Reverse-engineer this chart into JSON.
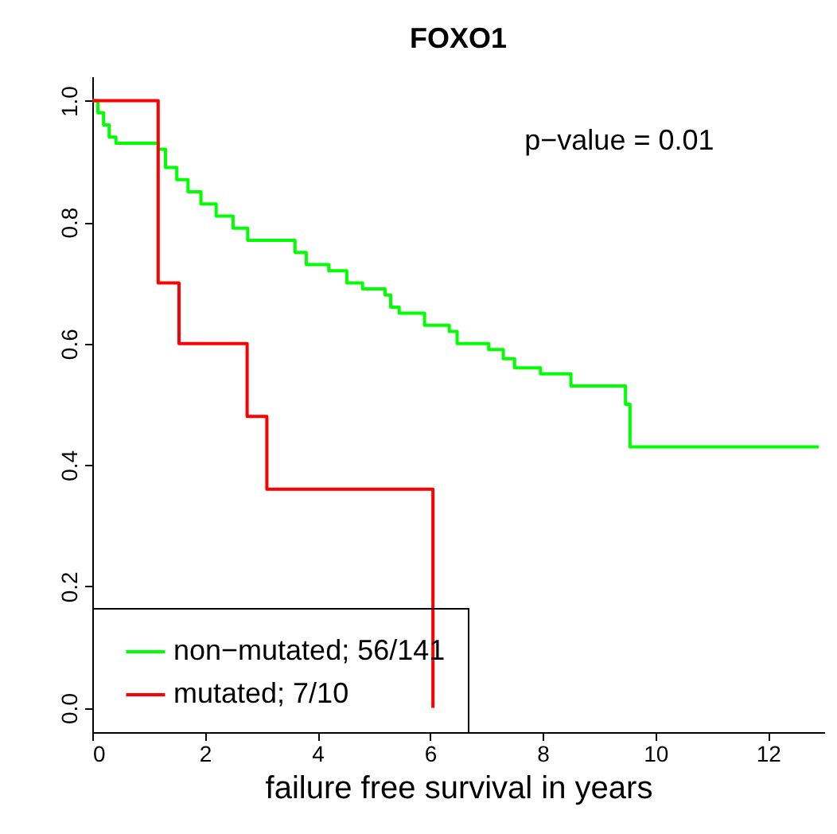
{
  "chart_data": {
    "type": "step",
    "title": "FOXO1",
    "xlabel": "failure free survival in years",
    "annotations": [
      "p−value = 0.01"
    ],
    "xlim": [
      0,
      13
    ],
    "ylim": [
      -0.04,
      1.04
    ],
    "xticks": [
      0,
      2,
      4,
      6,
      8,
      10,
      12
    ],
    "yticks": [
      {
        "value": 0,
        "label": "0.0"
      },
      {
        "value": 0.2,
        "label": "0.2"
      },
      {
        "value": 0.4,
        "label": "0.4"
      },
      {
        "value": 0.6,
        "label": "0.6"
      },
      {
        "value": 0.8,
        "label": "0.8"
      },
      {
        "value": 1,
        "label": "1.0"
      }
    ],
    "grid": false,
    "legend": "bottom left",
    "line_style": "solid",
    "series": [
      {
        "name": "non−mutated; 56/141",
        "color": "#00ff00",
        "x": [
          0,
          0.1,
          0.2,
          0.3,
          0.42,
          1.17,
          1.3,
          1.5,
          1.7,
          1.93,
          2.2,
          2.5,
          2.76,
          3.6,
          3.8,
          4.2,
          4.52,
          4.8,
          5.2,
          5.3,
          5.45,
          5.9,
          6.34,
          6.48,
          7.04,
          7.3,
          7.5,
          7.96,
          8.5,
          9.47,
          9.55,
          12.9
        ],
        "values": [
          1,
          0.98,
          0.96,
          0.94,
          0.93,
          0.92,
          0.89,
          0.87,
          0.85,
          0.83,
          0.81,
          0.79,
          0.77,
          0.75,
          0.73,
          0.72,
          0.7,
          0.69,
          0.68,
          0.66,
          0.65,
          0.63,
          0.62,
          0.6,
          0.59,
          0.575,
          0.56,
          0.55,
          0.53,
          0.5,
          0.43,
          0.43
        ]
      },
      {
        "name": "mutated; 7/10",
        "color": "#ff0000",
        "x": [
          0,
          1.17,
          1.54,
          2.75,
          3.1,
          6.05
        ],
        "values": [
          1,
          0.7,
          0.6,
          0.48,
          0.36,
          0
        ]
      }
    ]
  }
}
